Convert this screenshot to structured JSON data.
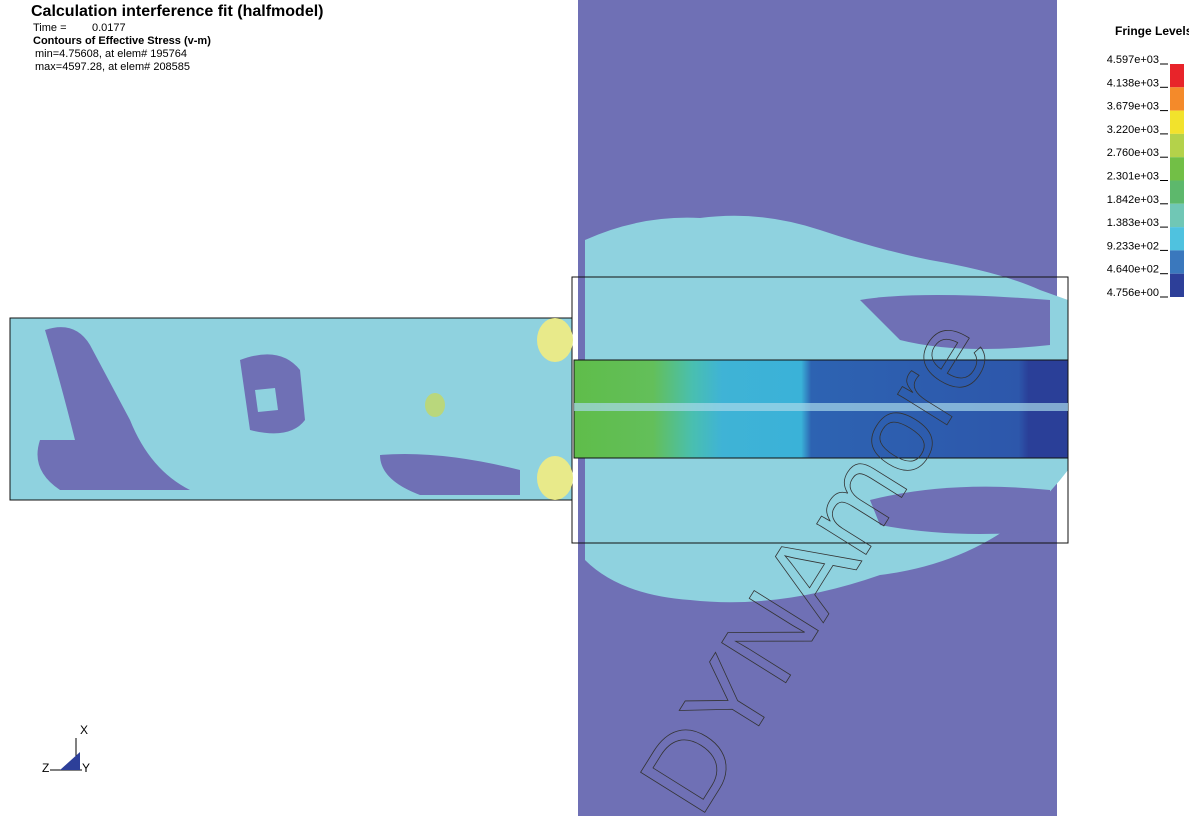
{
  "header": {
    "title": "Calculation interference fit (halfmodel)",
    "time_label": "Time =",
    "time_value": "0.0177",
    "contour_label": "Contours of Effective Stress (v-m)",
    "min_line": "min=4.75608, at elem# 195764",
    "max_line": "max=4597.28, at elem# 208585"
  },
  "legend": {
    "title": "Fringe Levels",
    "levels": [
      "4.597e+03",
      "4.138e+03",
      "3.679e+03",
      "3.220e+03",
      "2.760e+03",
      "2.301e+03",
      "1.842e+03",
      "1.383e+03",
      "9.233e+02",
      "4.640e+02",
      "4.756e+00"
    ],
    "colors": [
      "#e8242a",
      "#f48a2a",
      "#f2e22c",
      "#b4d24a",
      "#72bf46",
      "#5db86c",
      "#70c7b5",
      "#4fc2df",
      "#3a78bd",
      "#2d3f99"
    ]
  },
  "triad": {
    "x": "X",
    "y": "Y",
    "z": "Z"
  },
  "watermark": "DYNAmore"
}
